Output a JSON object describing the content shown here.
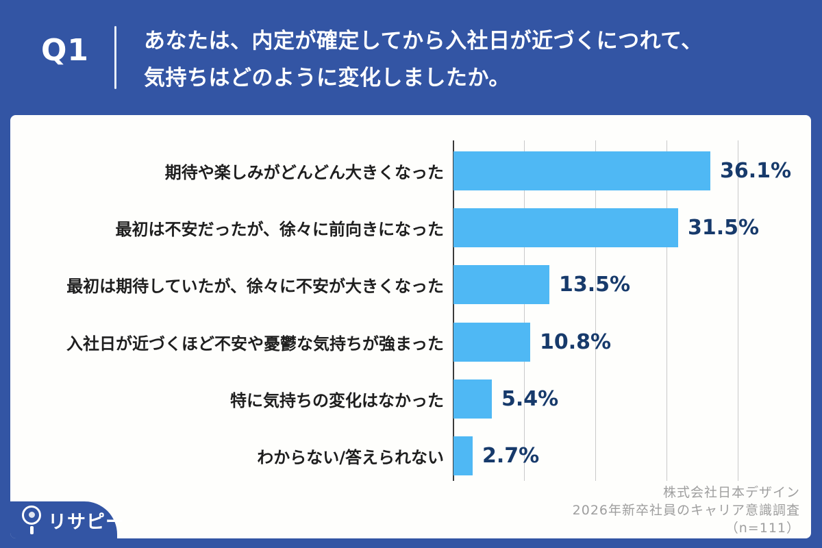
{
  "header": {
    "q_label": "Q1",
    "question_line1": "あなたは、内定が確定してから入社日が近づくにつれて、",
    "question_line2": "気持ちはどのように変化しましたか。"
  },
  "chart_data": {
    "type": "bar",
    "orientation": "horizontal",
    "title": "",
    "categories": [
      "期待や楽しみがどんどん大きくなった",
      "最初は不安だったが、徐々に前向きになった",
      "最初は期待していたが、徐々に不安が大きくなった",
      "入社日が近づくほど不安や憂鬱な気持ちが強まった",
      "特に気持ちの変化はなかった",
      "わからない/答えられない"
    ],
    "values": [
      36.1,
      31.5,
      13.5,
      10.8,
      5.4,
      2.7
    ],
    "value_labels": [
      "36.1%",
      "31.5%",
      "13.5%",
      "10.8%",
      "5.4%",
      "2.7%"
    ],
    "xlabel": "",
    "ylabel": "",
    "xlim": [
      0,
      45
    ],
    "gridlines_percent": [
      0,
      10,
      20,
      30,
      40
    ],
    "grid": true,
    "legend": false,
    "bar_color": "#4FB8F4",
    "value_label_color": "#173A6B"
  },
  "footer": {
    "source_lines": [
      "株式会社日本デザイン",
      "2026年新卒社員のキャリア意識調査",
      "（n=111）"
    ]
  },
  "logo": {
    "text": "リサピー"
  },
  "colors": {
    "background": "#3355A4",
    "card": "#FEFEFC",
    "bar": "#4FB8F4",
    "value_text": "#173A6B",
    "label_text": "#1E1E1E",
    "source_text": "#9E9E9E",
    "gridline": "#C9C9C9"
  }
}
